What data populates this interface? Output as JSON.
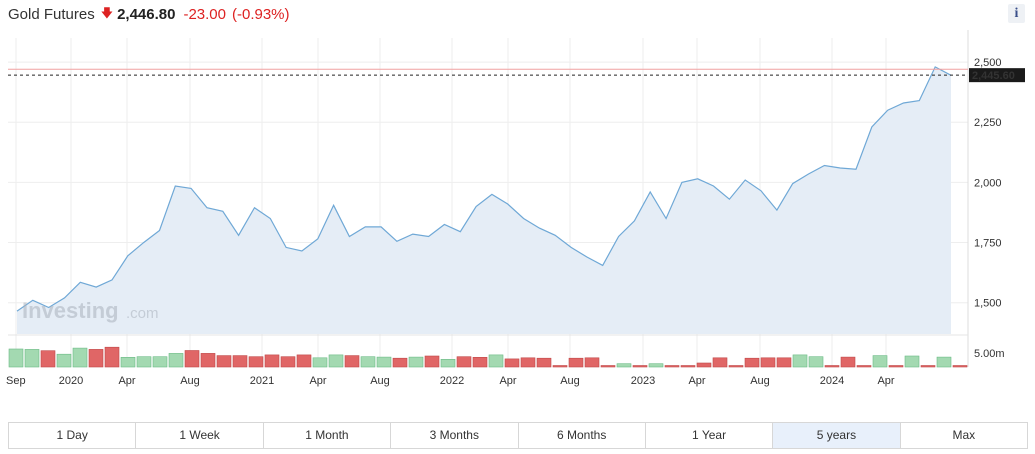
{
  "header": {
    "instrument": "Gold Futures",
    "price": "2,446.80",
    "change": "-23.00",
    "change_pct": "(-0.93%)"
  },
  "info_icon": "i",
  "watermark": {
    "brand": "Investing",
    "suffix": ".com"
  },
  "colors": {
    "line": "#6fa8d6",
    "area": "#e5edf6",
    "up_volume": "#a3d9b1",
    "down_volume": "#e06666",
    "reference_line": "#f0a0a0",
    "last_price_label_bg": "#1a1a1a"
  },
  "range_buttons": [
    {
      "label": "1 Day",
      "active": false
    },
    {
      "label": "1 Week",
      "active": false
    },
    {
      "label": "1 Month",
      "active": false
    },
    {
      "label": "3 Months",
      "active": false
    },
    {
      "label": "6 Months",
      "active": false
    },
    {
      "label": "1 Year",
      "active": false
    },
    {
      "label": "5 years",
      "active": true
    },
    {
      "label": "Max",
      "active": false
    }
  ],
  "chart_data": {
    "type": "area",
    "x_ticks": [
      "Sep",
      "2020",
      "Apr",
      "Aug",
      "2021",
      "Apr",
      "Aug",
      "2022",
      "Apr",
      "Aug",
      "2023",
      "Apr",
      "Aug",
      "2024",
      "Apr"
    ],
    "y_ticks": [
      "2,500",
      "2,250",
      "2,000",
      "1,750",
      "1,500"
    ],
    "ylim": [
      1370,
      2600
    ],
    "volume_tick": "5.00m",
    "last_price_label": "2,445.60",
    "last_price": 2445.6,
    "reference_line": 2470,
    "grid": true,
    "series": [
      {
        "values": [
          1465,
          1510,
          1480,
          1520,
          1585,
          1565,
          1595,
          1695,
          1750,
          1800,
          1985,
          1975,
          1895,
          1880,
          1780,
          1895,
          1850,
          1730,
          1715,
          1765,
          1905,
          1775,
          1815,
          1815,
          1755,
          1785,
          1775,
          1825,
          1795,
          1900,
          1950,
          1910,
          1850,
          1810,
          1780,
          1730,
          1690,
          1655,
          1775,
          1840,
          1960,
          1850,
          2000,
          2015,
          1985,
          1930,
          2010,
          1965,
          1885,
          1995,
          2035,
          2070,
          2060,
          2055,
          2230,
          2300,
          2330,
          2340,
          2480,
          2445
        ]
      }
    ],
    "volume": [
      {
        "v": 0.82,
        "up": true
      },
      {
        "v": 0.8,
        "up": true
      },
      {
        "v": 0.74,
        "up": false
      },
      {
        "v": 0.58,
        "up": true
      },
      {
        "v": 0.86,
        "up": true
      },
      {
        "v": 0.8,
        "up": false
      },
      {
        "v": 0.9,
        "up": false
      },
      {
        "v": 0.44,
        "up": true
      },
      {
        "v": 0.47,
        "up": true
      },
      {
        "v": 0.47,
        "up": true
      },
      {
        "v": 0.62,
        "up": true
      },
      {
        "v": 0.75,
        "up": false
      },
      {
        "v": 0.62,
        "up": false
      },
      {
        "v": 0.52,
        "up": false
      },
      {
        "v": 0.52,
        "up": false
      },
      {
        "v": 0.47,
        "up": false
      },
      {
        "v": 0.55,
        "up": false
      },
      {
        "v": 0.47,
        "up": false
      },
      {
        "v": 0.55,
        "up": false
      },
      {
        "v": 0.42,
        "up": true
      },
      {
        "v": 0.55,
        "up": true
      },
      {
        "v": 0.52,
        "up": false
      },
      {
        "v": 0.47,
        "up": true
      },
      {
        "v": 0.45,
        "up": true
      },
      {
        "v": 0.4,
        "up": false
      },
      {
        "v": 0.45,
        "up": true
      },
      {
        "v": 0.5,
        "up": false
      },
      {
        "v": 0.35,
        "up": true
      },
      {
        "v": 0.47,
        "up": false
      },
      {
        "v": 0.44,
        "up": false
      },
      {
        "v": 0.55,
        "up": true
      },
      {
        "v": 0.37,
        "up": false
      },
      {
        "v": 0.42,
        "up": false
      },
      {
        "v": 0.4,
        "up": false
      },
      {
        "v": 0.05,
        "up": false
      },
      {
        "v": 0.4,
        "up": false
      },
      {
        "v": 0.42,
        "up": false
      },
      {
        "v": 0.05,
        "up": false
      },
      {
        "v": 0.15,
        "up": true
      },
      {
        "v": 0.05,
        "up": false
      },
      {
        "v": 0.15,
        "up": true
      },
      {
        "v": 0.05,
        "up": false
      },
      {
        "v": 0.05,
        "up": false
      },
      {
        "v": 0.18,
        "up": false
      },
      {
        "v": 0.42,
        "up": false
      },
      {
        "v": 0.05,
        "up": false
      },
      {
        "v": 0.4,
        "up": false
      },
      {
        "v": 0.42,
        "up": false
      },
      {
        "v": 0.42,
        "up": false
      },
      {
        "v": 0.55,
        "up": true
      },
      {
        "v": 0.47,
        "up": true
      },
      {
        "v": 0.05,
        "up": false
      },
      {
        "v": 0.45,
        "up": false
      },
      {
        "v": 0.05,
        "up": false
      },
      {
        "v": 0.52,
        "up": true
      },
      {
        "v": 0.05,
        "up": false
      },
      {
        "v": 0.5,
        "up": true
      },
      {
        "v": 0.05,
        "up": false
      },
      {
        "v": 0.45,
        "up": true
      },
      {
        "v": 0.05,
        "up": false
      }
    ]
  }
}
